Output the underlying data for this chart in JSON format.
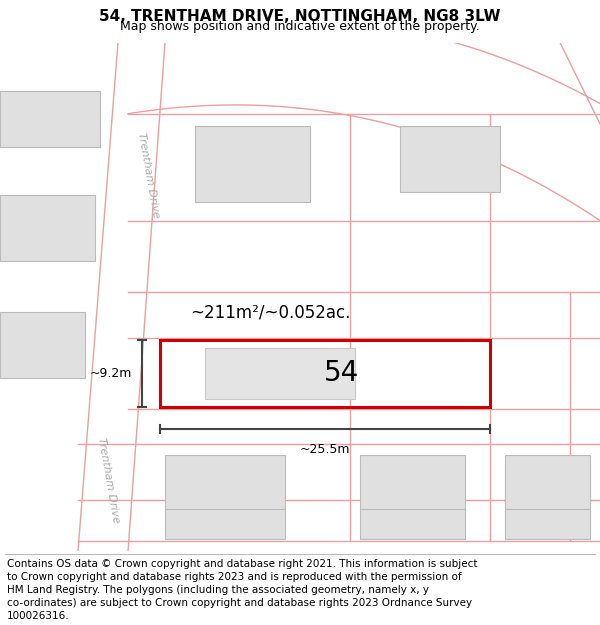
{
  "title_line1": "54, TRENTHAM DRIVE, NOTTINGHAM, NG8 3LW",
  "title_line2": "Map shows position and indicative extent of the property.",
  "area_label": "~211m²/~0.052ac.",
  "width_label": "~25.5m",
  "height_label": "~9.2m",
  "plot_number": "54",
  "map_bg": "#ffffff",
  "road_line_color": "#e8a0a0",
  "building_fill": "#e0e0e0",
  "building_edge": "#bbbbbb",
  "plot_outline_color": "#cc0000",
  "plot_fill": "#f2f2f2",
  "road_label_color": "#aaaaaa",
  "dim_line_color": "#444444",
  "title_fontsize": 11,
  "subtitle_fontsize": 9,
  "footer_fontsize": 7.5,
  "footer_lines": [
    "Contains OS data © Crown copyright and database right 2021. This information is subject",
    "to Crown copyright and database rights 2023 and is reproduced with the permission of",
    "HM Land Registry. The polygons (including the associated geometry, namely x, y",
    "co-ordinates) are subject to Crown copyright and database rights 2023 Ordnance Survey",
    "100026316."
  ]
}
